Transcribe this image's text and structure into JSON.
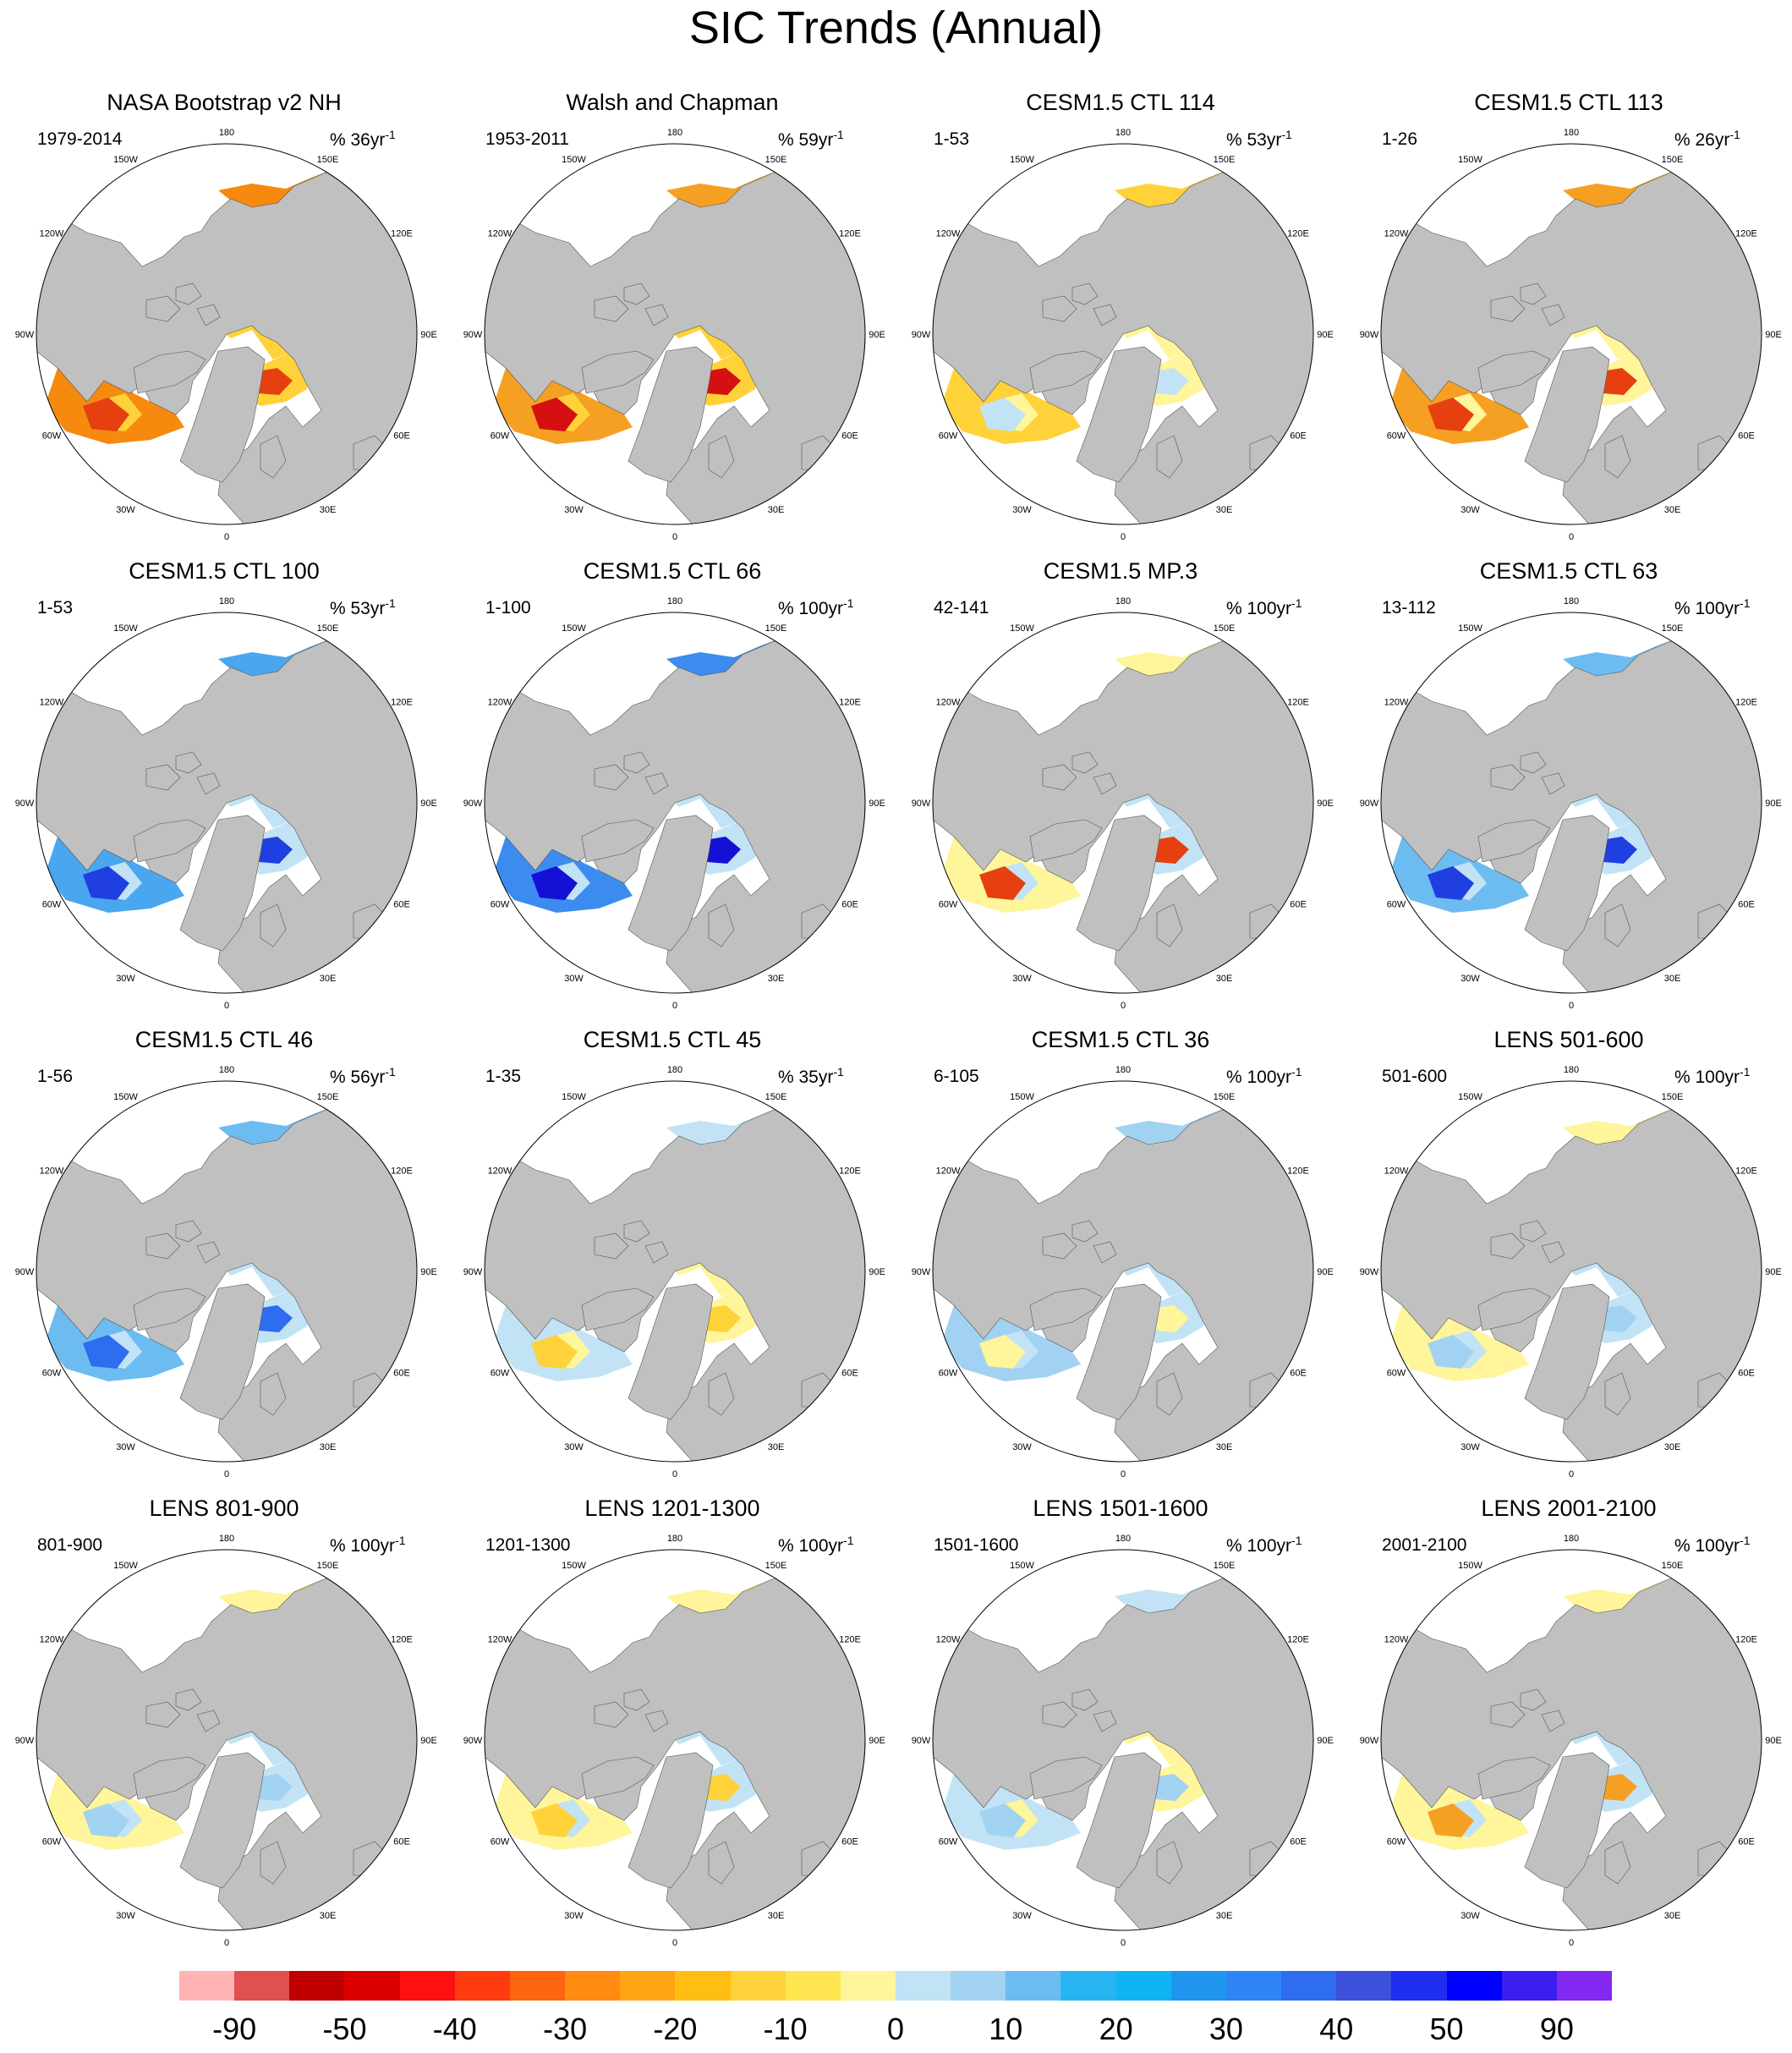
{
  "title": "SIC Trends (Annual)",
  "land_color": "#c0c0c0",
  "ocean_color": "#ffffff",
  "longitude_labels": [
    "180",
    "150E",
    "120E",
    "90E",
    "60E",
    "30E",
    "0",
    "30W",
    "60W",
    "90W",
    "120W",
    "150W"
  ],
  "panels": [
    {
      "title": "NASA Bootstrap v2 NH",
      "period": "1979-2014",
      "unit": "% 36yr",
      "unit_exp": "-1",
      "palette": [
        "#ffd23a",
        "#f58a0f",
        "#e64010"
      ],
      "dominant_sign": "negative"
    },
    {
      "title": "Walsh and Chapman",
      "period": "1953-2011",
      "unit": "% 59yr",
      "unit_exp": "-1",
      "palette": [
        "#ffd23a",
        "#f5a023",
        "#d41010"
      ],
      "dominant_sign": "negative"
    },
    {
      "title": "CESM1.5 CTL 114",
      "period": "1-53",
      "unit": "% 53yr",
      "unit_exp": "-1",
      "palette": [
        "#fff59a",
        "#ffd23a",
        "#c2e3f5"
      ],
      "dominant_sign": "mixed"
    },
    {
      "title": "CESM1.5 CTL 113",
      "period": "1-26",
      "unit": "% 26yr",
      "unit_exp": "-1",
      "palette": [
        "#fff59a",
        "#f5a023",
        "#e64010"
      ],
      "dominant_sign": "negative"
    },
    {
      "title": "CESM1.5 CTL 100",
      "period": "1-53",
      "unit": "% 53yr",
      "unit_exp": "-1",
      "palette": [
        "#c2e3f5",
        "#4aa6ee",
        "#1f3fe0"
      ],
      "dominant_sign": "positive"
    },
    {
      "title": "CESM1.5 CTL 66",
      "period": "1-100",
      "unit": "% 100yr",
      "unit_exp": "-1",
      "palette": [
        "#c2e3f5",
        "#3c8cf0",
        "#1410d6"
      ],
      "dominant_sign": "positive"
    },
    {
      "title": "CESM1.5 MP.3",
      "period": "42-141",
      "unit": "% 100yr",
      "unit_exp": "-1",
      "palette": [
        "#c2e3f5",
        "#fff59a",
        "#e64010"
      ],
      "dominant_sign": "mixed"
    },
    {
      "title": "CESM1.5 CTL 63",
      "period": "13-112",
      "unit": "% 100yr",
      "unit_exp": "-1",
      "palette": [
        "#c2e3f5",
        "#6cbcf2",
        "#1f3fe0"
      ],
      "dominant_sign": "positive"
    },
    {
      "title": "CESM1.5 CTL 46",
      "period": "1-56",
      "unit": "% 56yr",
      "unit_exp": "-1",
      "palette": [
        "#c2e3f5",
        "#6cbcf2",
        "#2e6cf0"
      ],
      "dominant_sign": "positive"
    },
    {
      "title": "CESM1.5 CTL 45",
      "period": "1-35",
      "unit": "% 35yr",
      "unit_exp": "-1",
      "palette": [
        "#fff59a",
        "#c2e3f5",
        "#ffd23a"
      ],
      "dominant_sign": "mixed"
    },
    {
      "title": "CESM1.5 CTL 36",
      "period": "6-105",
      "unit": "% 100yr",
      "unit_exp": "-1",
      "palette": [
        "#c2e3f5",
        "#a2d2f2",
        "#fff59a"
      ],
      "dominant_sign": "positive"
    },
    {
      "title": "LENS 501-600",
      "period": "501-600",
      "unit": "% 100yr",
      "unit_exp": "-1",
      "palette": [
        "#c2e3f5",
        "#fff59a",
        "#a2d2f2"
      ],
      "dominant_sign": "mixed"
    },
    {
      "title": "LENS 801-900",
      "period": "801-900",
      "unit": "% 100yr",
      "unit_exp": "-1",
      "palette": [
        "#c2e3f5",
        "#fff59a",
        "#a2d2f2"
      ],
      "dominant_sign": "mixed"
    },
    {
      "title": "LENS 1201-1300",
      "period": "1201-1300",
      "unit": "% 100yr",
      "unit_exp": "-1",
      "palette": [
        "#c2e3f5",
        "#fff59a",
        "#ffd23a"
      ],
      "dominant_sign": "mixed"
    },
    {
      "title": "LENS 1501-1600",
      "period": "1501-1600",
      "unit": "% 100yr",
      "unit_exp": "-1",
      "palette": [
        "#fff59a",
        "#c2e3f5",
        "#a2d2f2"
      ],
      "dominant_sign": "mixed"
    },
    {
      "title": "LENS 2001-2100",
      "period": "2001-2100",
      "unit": "% 100yr",
      "unit_exp": "-1",
      "palette": [
        "#c2e3f5",
        "#fff59a",
        "#f5a023"
      ],
      "dominant_sign": "mixed"
    }
  ],
  "colorbar": {
    "colors": [
      "#ffb4b4",
      "#e05050",
      "#c00000",
      "#dc0000",
      "#ff1010",
      "#ff3c10",
      "#ff6410",
      "#ff8c10",
      "#ffa514",
      "#ffbe14",
      "#ffd23a",
      "#ffe650",
      "#fff59a",
      "#c2e3f5",
      "#a2d2f2",
      "#6cbcf2",
      "#28b4f0",
      "#10b4f5",
      "#1e96f0",
      "#2e84f5",
      "#2e6cf0",
      "#3c50dc",
      "#1f2ef0",
      "#0000ff",
      "#3c1ef0",
      "#8228f0"
    ],
    "labels": [
      "-90",
      "-50",
      "-40",
      "-30",
      "-20",
      "-10",
      "0",
      "10",
      "20",
      "30",
      "40",
      "50",
      "90"
    ]
  }
}
